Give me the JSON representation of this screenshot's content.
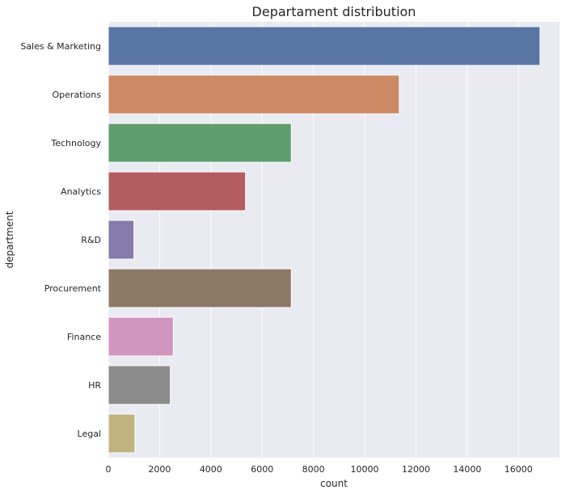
{
  "chart_data": {
    "type": "bar",
    "orientation": "horizontal",
    "title": "Departament distribution",
    "xlabel": "count",
    "ylabel": "department",
    "categories": [
      "Sales & Marketing",
      "Operations",
      "Technology",
      "Analytics",
      "R&D",
      "Procurement",
      "Finance",
      "HR",
      "Legal"
    ],
    "values": [
      16840,
      11348,
      7138,
      5352,
      999,
      7138,
      2536,
      2418,
      1039
    ],
    "colors": [
      "#5875a4",
      "#cc8963",
      "#5f9e6e",
      "#b55d60",
      "#857aab",
      "#8d7866",
      "#d095bf",
      "#8c8c8c",
      "#c1b37f"
    ],
    "xlim": [
      0,
      17600
    ],
    "xticks": [
      0,
      2000,
      4000,
      6000,
      8000,
      10000,
      12000,
      14000,
      16000
    ],
    "xtick_labels": [
      "0",
      "2000",
      "4000",
      "6000",
      "8000",
      "10000",
      "12000",
      "14000",
      "16000"
    ],
    "grid": true,
    "background": "#eaeaf2"
  }
}
